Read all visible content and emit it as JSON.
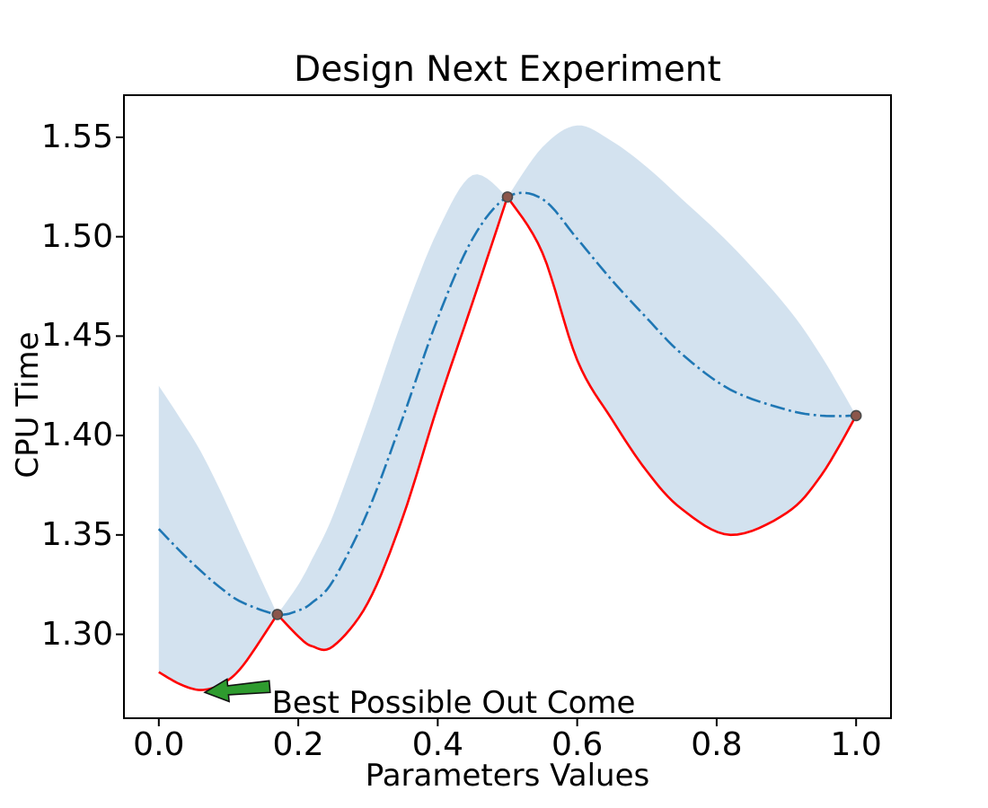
{
  "figure": {
    "background": "#ffffff",
    "text_color": "#000000"
  },
  "chart_data": {
    "type": "line",
    "title": "Design Next Experiment",
    "xlabel": "Parameters Values",
    "ylabel": "CPU Time",
    "xlim": [
      -0.05,
      1.05
    ],
    "ylim": [
      1.2578,
      1.5712
    ],
    "grid": false,
    "legend": "none",
    "x_ticks": [
      0.0,
      0.2,
      0.4,
      0.6,
      0.8,
      1.0
    ],
    "x_tick_labels": [
      "0.0",
      "0.2",
      "0.4",
      "0.6",
      "0.8",
      "1.0"
    ],
    "y_ticks": [
      1.3,
      1.35,
      1.4,
      1.45,
      1.5,
      1.55
    ],
    "y_tick_labels": [
      "1.30",
      "1.35",
      "1.40",
      "1.45",
      "1.50",
      "1.55"
    ],
    "samples": {
      "x": [
        0.0,
        0.03,
        0.06,
        0.09,
        0.12,
        0.17,
        0.2,
        0.22,
        0.25,
        0.3,
        0.35,
        0.4,
        0.45,
        0.5,
        0.55,
        0.6,
        0.65,
        0.7,
        0.75,
        0.82,
        0.9,
        0.95,
        1.0
      ],
      "mean": [
        1.353,
        1.342,
        1.332,
        1.323,
        1.316,
        1.31,
        1.312,
        1.316,
        1.327,
        1.362,
        1.409,
        1.459,
        1.499,
        1.52,
        1.519,
        1.499,
        1.478,
        1.459,
        1.441,
        1.423,
        1.413,
        1.41,
        1.41
      ],
      "lower": [
        1.281,
        1.275,
        1.272,
        1.275,
        1.284,
        1.31,
        1.299,
        1.294,
        1.294,
        1.316,
        1.359,
        1.415,
        1.467,
        1.52,
        1.492,
        1.438,
        1.408,
        1.382,
        1.363,
        1.35,
        1.361,
        1.38,
        1.41
      ],
      "upper": [
        1.425,
        1.409,
        1.392,
        1.371,
        1.348,
        1.31,
        1.325,
        1.338,
        1.36,
        1.408,
        1.459,
        1.503,
        1.531,
        1.52,
        1.545,
        1.556,
        1.548,
        1.535,
        1.519,
        1.496,
        1.465,
        1.44,
        1.41
      ]
    },
    "pinch_x": [
      0.17,
      0.5
    ],
    "series": [
      {
        "name": "gp-mean",
        "style": "dashdot",
        "color": "#1f77b4"
      },
      {
        "name": "lower-confidence-bound",
        "style": "solid",
        "color": "#ff0000"
      },
      {
        "name": "confidence-band",
        "style": "fill",
        "color": "#d3e2ef"
      }
    ],
    "observations": {
      "x": [
        0.17,
        0.5,
        1.0
      ],
      "y": [
        1.31,
        1.52,
        1.41
      ],
      "fill": "#8c564b",
      "edge": "#4a4a4a"
    },
    "annotation": {
      "text": "Best Possible Out Come",
      "arrow_tip": [
        0.066,
        1.2708
      ],
      "arrow_tail": [
        0.159,
        1.2737
      ],
      "text_pos": [
        0.162,
        1.2731
      ],
      "arrow_fill": "#2e9b2e",
      "arrow_edge": "#111111"
    },
    "axis": {
      "spine_color": "#000000",
      "tick_color": "#000000"
    }
  }
}
